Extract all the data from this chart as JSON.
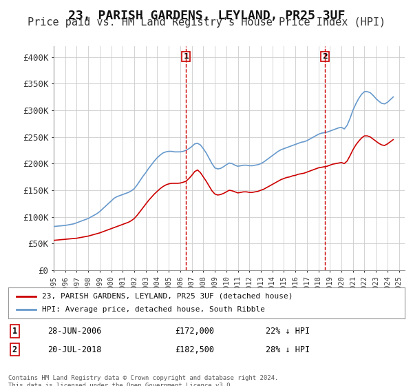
{
  "title": "23, PARISH GARDENS, LEYLAND, PR25 3UF",
  "subtitle": "Price paid vs. HM Land Registry's House Price Index (HPI)",
  "title_fontsize": 13,
  "subtitle_fontsize": 11,
  "ylabel_ticks": [
    0,
    50000,
    100000,
    150000,
    200000,
    250000,
    300000,
    350000,
    400000
  ],
  "ylabel_labels": [
    "£0",
    "£50K",
    "£100K",
    "£150K",
    "£200K",
    "£250K",
    "£300K",
    "£350K",
    "£400K"
  ],
  "ylim": [
    0,
    420000
  ],
  "xlim_start": 1995.0,
  "xlim_end": 2025.5,
  "hpi_color": "#6699cc",
  "price_color": "#cc0000",
  "vline_color": "#cc0000",
  "grid_color": "#cccccc",
  "background_color": "#ffffff",
  "marker1_year": 2006.5,
  "marker2_year": 2018.58,
  "legend_label1": "23, PARISH GARDENS, LEYLAND, PR25 3UF (detached house)",
  "legend_label2": "HPI: Average price, detached house, South Ribble",
  "annotation1_num": "1",
  "annotation1_date": "28-JUN-2006",
  "annotation1_price": "£172,000",
  "annotation1_hpi": "22% ↓ HPI",
  "annotation2_num": "2",
  "annotation2_date": "20-JUL-2018",
  "annotation2_price": "£182,500",
  "annotation2_hpi": "28% ↓ HPI",
  "footnote": "Contains HM Land Registry data © Crown copyright and database right 2024.\nThis data is licensed under the Open Government Licence v3.0.",
  "hpi_data_x": [
    1995.0,
    1995.25,
    1995.5,
    1995.75,
    1996.0,
    1996.25,
    1996.5,
    1996.75,
    1997.0,
    1997.25,
    1997.5,
    1997.75,
    1998.0,
    1998.25,
    1998.5,
    1998.75,
    1999.0,
    1999.25,
    1999.5,
    1999.75,
    2000.0,
    2000.25,
    2000.5,
    2000.75,
    2001.0,
    2001.25,
    2001.5,
    2001.75,
    2002.0,
    2002.25,
    2002.5,
    2002.75,
    2003.0,
    2003.25,
    2003.5,
    2003.75,
    2004.0,
    2004.25,
    2004.5,
    2004.75,
    2005.0,
    2005.25,
    2005.5,
    2005.75,
    2006.0,
    2006.25,
    2006.5,
    2006.75,
    2007.0,
    2007.25,
    2007.5,
    2007.75,
    2008.0,
    2008.25,
    2008.5,
    2008.75,
    2009.0,
    2009.25,
    2009.5,
    2009.75,
    2010.0,
    2010.25,
    2010.5,
    2010.75,
    2011.0,
    2011.25,
    2011.5,
    2011.75,
    2012.0,
    2012.25,
    2012.5,
    2012.75,
    2013.0,
    2013.25,
    2013.5,
    2013.75,
    2014.0,
    2014.25,
    2014.5,
    2014.75,
    2015.0,
    2015.25,
    2015.5,
    2015.75,
    2016.0,
    2016.25,
    2016.5,
    2016.75,
    2017.0,
    2017.25,
    2017.5,
    2017.75,
    2018.0,
    2018.25,
    2018.5,
    2018.75,
    2019.0,
    2019.25,
    2019.5,
    2019.75,
    2020.0,
    2020.25,
    2020.5,
    2020.75,
    2021.0,
    2021.25,
    2021.5,
    2021.75,
    2022.0,
    2022.25,
    2022.5,
    2022.75,
    2023.0,
    2023.25,
    2023.5,
    2023.75,
    2024.0,
    2024.25,
    2024.5
  ],
  "hpi_data_y": [
    82000,
    82500,
    83000,
    83500,
    84000,
    85000,
    86000,
    87000,
    89000,
    91000,
    93000,
    95000,
    97000,
    100000,
    103000,
    106000,
    110000,
    115000,
    120000,
    125000,
    130000,
    135000,
    138000,
    140000,
    142000,
    144000,
    146000,
    149000,
    153000,
    160000,
    168000,
    176000,
    183000,
    191000,
    198000,
    205000,
    211000,
    216000,
    220000,
    222000,
    223000,
    223000,
    222000,
    222000,
    222000,
    223000,
    225000,
    228000,
    232000,
    237000,
    238000,
    235000,
    228000,
    220000,
    210000,
    200000,
    192000,
    190000,
    191000,
    194000,
    198000,
    201000,
    200000,
    197000,
    195000,
    196000,
    197000,
    197000,
    196000,
    196000,
    197000,
    198000,
    200000,
    203000,
    207000,
    211000,
    215000,
    219000,
    223000,
    226000,
    228000,
    230000,
    232000,
    234000,
    236000,
    238000,
    240000,
    241000,
    243000,
    246000,
    249000,
    252000,
    255000,
    257000,
    258000,
    259000,
    261000,
    263000,
    265000,
    267000,
    268000,
    265000,
    272000,
    285000,
    300000,
    312000,
    322000,
    330000,
    335000,
    335000,
    333000,
    328000,
    322000,
    317000,
    313000,
    312000,
    315000,
    320000,
    325000
  ],
  "price_data_x": [
    1995.0,
    1995.25,
    1995.5,
    1995.75,
    1996.0,
    1996.25,
    1996.5,
    1996.75,
    1997.0,
    1997.25,
    1997.5,
    1997.75,
    1998.0,
    1998.25,
    1998.5,
    1998.75,
    1999.0,
    1999.25,
    1999.5,
    1999.75,
    2000.0,
    2000.25,
    2000.5,
    2000.75,
    2001.0,
    2001.25,
    2001.5,
    2001.75,
    2002.0,
    2002.25,
    2002.5,
    2002.75,
    2003.0,
    2003.25,
    2003.5,
    2003.75,
    2004.0,
    2004.25,
    2004.5,
    2004.75,
    2005.0,
    2005.25,
    2005.5,
    2005.75,
    2006.0,
    2006.25,
    2006.5,
    2006.75,
    2007.0,
    2007.25,
    2007.5,
    2007.75,
    2008.0,
    2008.25,
    2008.5,
    2008.75,
    2009.0,
    2009.25,
    2009.5,
    2009.75,
    2010.0,
    2010.25,
    2010.5,
    2010.75,
    2011.0,
    2011.25,
    2011.5,
    2011.75,
    2012.0,
    2012.25,
    2012.5,
    2012.75,
    2013.0,
    2013.25,
    2013.5,
    2013.75,
    2014.0,
    2014.25,
    2014.5,
    2014.75,
    2015.0,
    2015.25,
    2015.5,
    2015.75,
    2016.0,
    2016.25,
    2016.5,
    2016.75,
    2017.0,
    2017.25,
    2017.5,
    2017.75,
    2018.0,
    2018.25,
    2018.5,
    2018.75,
    2019.0,
    2019.25,
    2019.5,
    2019.75,
    2020.0,
    2020.25,
    2020.5,
    2020.75,
    2021.0,
    2021.25,
    2021.5,
    2021.75,
    2022.0,
    2022.25,
    2022.5,
    2022.75,
    2023.0,
    2023.25,
    2023.5,
    2023.75,
    2024.0,
    2024.25,
    2024.5
  ],
  "price_data_y": [
    56000,
    56500,
    57000,
    57500,
    58000,
    58500,
    59000,
    59500,
    60000,
    61000,
    62000,
    63000,
    64000,
    65500,
    67000,
    68500,
    70000,
    72000,
    74000,
    76000,
    78000,
    80000,
    82000,
    84000,
    86000,
    88000,
    90000,
    93000,
    97000,
    103000,
    110000,
    117000,
    124000,
    131000,
    137000,
    143000,
    148000,
    153000,
    157000,
    160000,
    162000,
    163000,
    163000,
    163000,
    163500,
    165000,
    167000,
    172000,
    178000,
    185000,
    188000,
    183000,
    175000,
    167000,
    158000,
    149000,
    143000,
    141000,
    142000,
    144000,
    147000,
    150000,
    149000,
    147000,
    145000,
    146000,
    147000,
    147000,
    146000,
    146000,
    147000,
    148000,
    150000,
    152000,
    155000,
    158000,
    161000,
    164000,
    167000,
    170000,
    172000,
    174000,
    175000,
    177000,
    178000,
    180000,
    181000,
    182000,
    184000,
    186000,
    188000,
    190000,
    192000,
    193000,
    194000,
    195000,
    197000,
    199000,
    200000,
    201000,
    202000,
    200000,
    205000,
    215000,
    226000,
    235000,
    242000,
    248000,
    252000,
    252000,
    250000,
    246000,
    242000,
    238000,
    235000,
    234000,
    237000,
    241000,
    245000
  ]
}
